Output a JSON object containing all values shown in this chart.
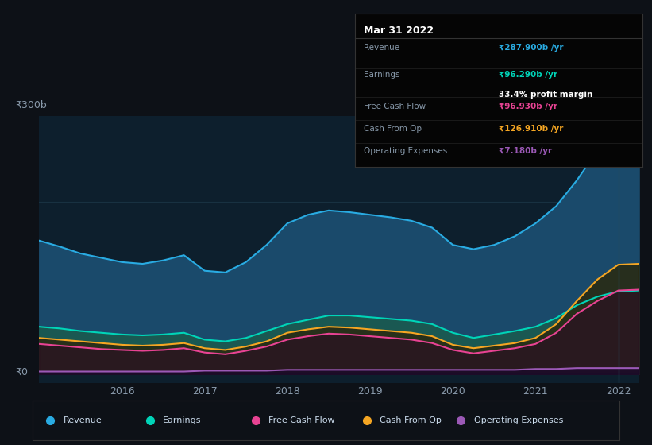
{
  "bg_color": "#0d1117",
  "plot_bg_color": "#0d1f2d",
  "title": "Mar 31 2022",
  "y_label_top": "₹300b",
  "y_label_bottom": "₹0",
  "x_ticks": [
    2016,
    2017,
    2018,
    2019,
    2020,
    2021,
    2022
  ],
  "years": [
    2015.0,
    2015.25,
    2015.5,
    2015.75,
    2016.0,
    2016.25,
    2016.5,
    2016.75,
    2017.0,
    2017.25,
    2017.5,
    2017.75,
    2018.0,
    2018.25,
    2018.5,
    2018.75,
    2019.0,
    2019.25,
    2019.5,
    2019.75,
    2020.0,
    2020.25,
    2020.5,
    2020.75,
    2021.0,
    2021.25,
    2021.5,
    2021.75,
    2022.0,
    2022.25
  ],
  "revenue": [
    155,
    148,
    140,
    135,
    130,
    128,
    132,
    138,
    120,
    118,
    130,
    150,
    175,
    185,
    190,
    188,
    185,
    182,
    178,
    170,
    150,
    145,
    150,
    160,
    175,
    195,
    225,
    260,
    287,
    288
  ],
  "earnings": [
    55,
    53,
    50,
    48,
    46,
    45,
    46,
    48,
    40,
    38,
    42,
    50,
    58,
    63,
    68,
    68,
    66,
    64,
    62,
    58,
    48,
    42,
    46,
    50,
    55,
    65,
    80,
    90,
    96,
    97
  ],
  "free_cash_flow": [
    35,
    33,
    31,
    29,
    28,
    27,
    28,
    30,
    25,
    23,
    27,
    32,
    40,
    44,
    47,
    46,
    44,
    42,
    40,
    36,
    28,
    24,
    27,
    30,
    35,
    48,
    70,
    85,
    97,
    98
  ],
  "cash_from_op": [
    42,
    40,
    38,
    36,
    34,
    33,
    34,
    36,
    30,
    28,
    32,
    38,
    48,
    52,
    55,
    54,
    52,
    50,
    48,
    44,
    34,
    30,
    33,
    36,
    42,
    58,
    85,
    110,
    127,
    128
  ],
  "operating_expenses": [
    3,
    3,
    3,
    3,
    3,
    3,
    3,
    3,
    4,
    4,
    4,
    4,
    5,
    5,
    5,
    5,
    5,
    5,
    5,
    5,
    5,
    5,
    5,
    5,
    6,
    6,
    7,
    7,
    7,
    7
  ],
  "revenue_color": "#29abe2",
  "earnings_color": "#00d4b8",
  "free_cash_flow_color": "#e84393",
  "cash_from_op_color": "#f5a623",
  "operating_expenses_color": "#9b59b6",
  "revenue_fill": "#1a4a6b",
  "earnings_fill": "#1a5a50",
  "vertical_line_color": "#2a4a5a",
  "y_max": 300,
  "y_min": -10,
  "tooltip_rows": [
    {
      "label": "Revenue",
      "value": "₹287.900b /yr",
      "color": "#29abe2",
      "sub": null,
      "sub_color": null
    },
    {
      "label": "Earnings",
      "value": "₹96.290b /yr",
      "color": "#00d4b8",
      "sub": "33.4% profit margin",
      "sub_color": "white"
    },
    {
      "label": "Free Cash Flow",
      "value": "₹96.930b /yr",
      "color": "#e84393",
      "sub": null,
      "sub_color": null
    },
    {
      "label": "Cash From Op",
      "value": "₹126.910b /yr",
      "color": "#f5a623",
      "sub": null,
      "sub_color": null
    },
    {
      "label": "Operating Expenses",
      "value": "₹7.180b /yr",
      "color": "#9b59b6",
      "sub": null,
      "sub_color": null
    }
  ],
  "legend_items": [
    "Revenue",
    "Earnings",
    "Free Cash Flow",
    "Cash From Op",
    "Operating Expenses"
  ],
  "legend_colors": [
    "#29abe2",
    "#00d4b8",
    "#e84393",
    "#f5a623",
    "#9b59b6"
  ]
}
